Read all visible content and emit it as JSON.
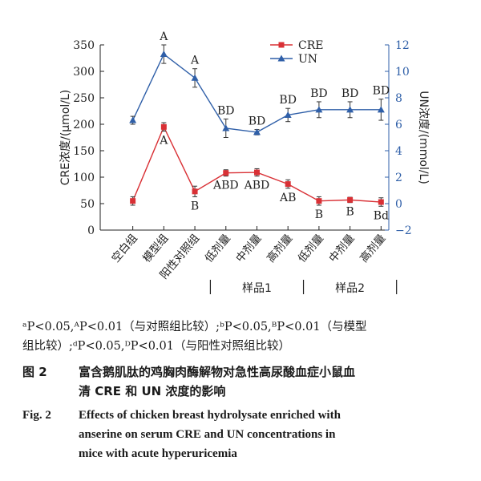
{
  "chart_data": {
    "type": "line",
    "categories": [
      "空白组",
      "模型组",
      "阳性对照组",
      "低剂量",
      "中剂量",
      "高剂量",
      "低剂量",
      "中剂量",
      "高剂量"
    ],
    "groups": [
      {
        "label": "样品1",
        "categories": [
          "低剂量",
          "中剂量",
          "高剂量"
        ]
      },
      {
        "label": "样品2",
        "categories": [
          "低剂量",
          "中剂量",
          "高剂量"
        ]
      }
    ],
    "y_left": {
      "label": "CRE浓度/(μmol/L)",
      "ylim": [
        0,
        350
      ],
      "ticks": [
        0,
        50,
        100,
        150,
        200,
        250,
        300,
        350
      ]
    },
    "y_right": {
      "label": "UN浓度/(mmol/L)",
      "ylim": [
        -2,
        12
      ],
      "ticks": [
        -2,
        0,
        2,
        4,
        6,
        8,
        10,
        12
      ]
    },
    "series": [
      {
        "name": "CRE",
        "axis": "left",
        "color": "#d93035",
        "marker": "square",
        "values": [
          55,
          195,
          73,
          108,
          109,
          87,
          55,
          57,
          53
        ],
        "errors": [
          8,
          8,
          10,
          6,
          7,
          8,
          8,
          5,
          8
        ],
        "labels": [
          "",
          "A",
          "B",
          "ABD",
          "ABD",
          "AB",
          "B",
          "B",
          "Bd"
        ]
      },
      {
        "name": "UN",
        "axis": "right",
        "color": "#2f5fa8",
        "marker": "triangle",
        "values": [
          6.3,
          11.3,
          9.5,
          5.7,
          5.4,
          6.7,
          7.1,
          7.1,
          7.1
        ],
        "errors": [
          0.3,
          0.7,
          0.7,
          0.7,
          0.2,
          0.5,
          0.6,
          0.6,
          0.8
        ],
        "labels": [
          "",
          "A",
          "A",
          "BD",
          "BD",
          "BD",
          "BD",
          "BD",
          "BD"
        ]
      }
    ]
  },
  "notes": {
    "line1": "ᵃP<0.05,ᴬP<0.01（与对照组比较）;ᵇP<0.05,ᴮP<0.01（与模型",
    "line2": "组比较）;ᵈP<0.05,ᴰP<0.01（与阳性对照组比较）"
  },
  "caption": {
    "cn_label": "图 2",
    "cn_line1": "富含鹅肌肽的鸡胸肉酶解物对急性高尿酸血症小鼠血",
    "cn_line2": "清 CRE 和 UN 浓度的影响",
    "en_label": "Fig. 2",
    "en_line1": "Effects of chicken breast hydrolysate enriched with",
    "en_line2": "anserine on serum CRE and UN concentrations in",
    "en_line3": "mice with acute hyperuricemia"
  }
}
